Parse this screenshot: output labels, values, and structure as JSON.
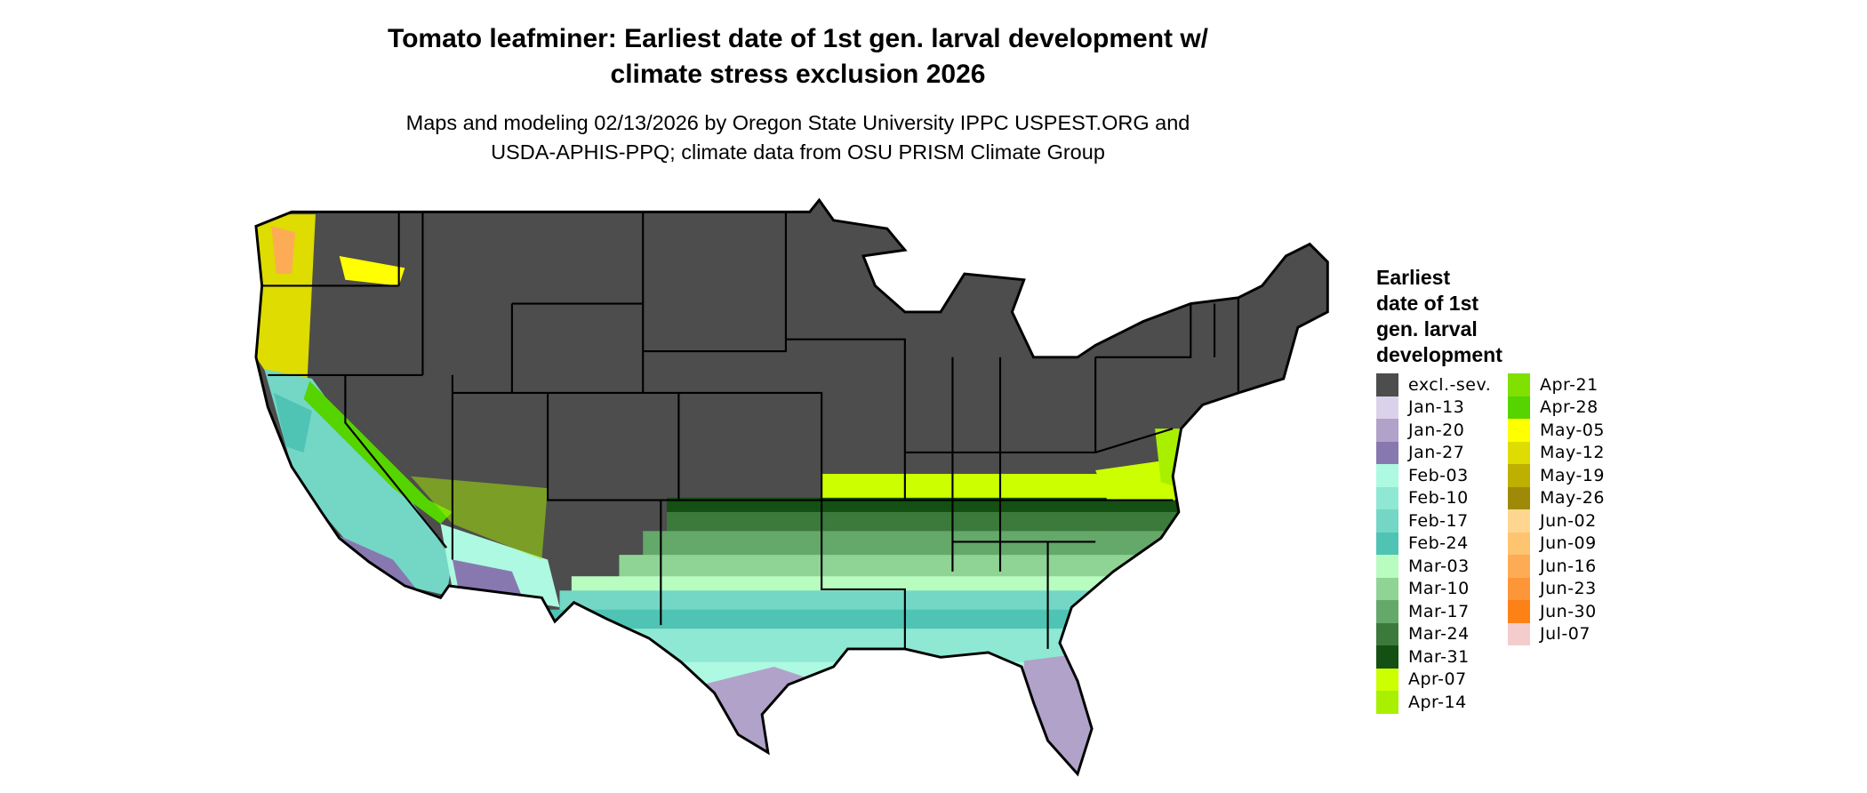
{
  "title": {
    "line1": "Tomato leafminer: Earliest date of 1st gen. larval development w/",
    "line2": "climate stress exclusion 2026"
  },
  "subtitle": {
    "line1": "Maps and modeling 02/13/2026 by Oregon State University IPPC USPEST.ORG and",
    "line2": "USDA-APHIS-PPQ; climate data from OSU PRISM Climate Group"
  },
  "legend": {
    "title_lines": [
      "Earliest",
      "date of 1st",
      "gen. larval",
      "development"
    ],
    "items": [
      {
        "label": "excl.-sev.",
        "color": "#4d4d4d"
      },
      {
        "label": "Jan-13",
        "color": "#dad2ea"
      },
      {
        "label": "Jan-20",
        "color": "#b0a2c9"
      },
      {
        "label": "Jan-27",
        "color": "#8878b0"
      },
      {
        "label": "Feb-03",
        "color": "#adf9e1"
      },
      {
        "label": "Feb-10",
        "color": "#8fe8d3"
      },
      {
        "label": "Feb-17",
        "color": "#74d7c5"
      },
      {
        "label": "Feb-24",
        "color": "#4fc4b5"
      },
      {
        "label": "Mar-03",
        "color": "#b8fcc0"
      },
      {
        "label": "Mar-10",
        "color": "#8fd494"
      },
      {
        "label": "Mar-17",
        "color": "#64a86a"
      },
      {
        "label": "Mar-24",
        "color": "#3b7a3b"
      },
      {
        "label": "Mar-31",
        "color": "#144f14"
      },
      {
        "label": "Apr-07",
        "color": "#ccff00"
      },
      {
        "label": "Apr-14",
        "color": "#a8f000"
      },
      {
        "label": "Apr-21",
        "color": "#80e000"
      },
      {
        "label": "Apr-28",
        "color": "#55d400"
      },
      {
        "label": "May-05",
        "color": "#ffff00"
      },
      {
        "label": "May-12",
        "color": "#dedc00"
      },
      {
        "label": "May-19",
        "color": "#bdb000"
      },
      {
        "label": "May-26",
        "color": "#9e8a08"
      },
      {
        "label": "Jun-02",
        "color": "#fed68f"
      },
      {
        "label": "Jun-09",
        "color": "#fec470"
      },
      {
        "label": "Jun-16",
        "color": "#fdac55"
      },
      {
        "label": "Jun-23",
        "color": "#fd9638"
      },
      {
        "label": "Jun-30",
        "color": "#fc8218"
      },
      {
        "label": "Jul-07",
        "color": "#f4cccc"
      }
    ]
  }
}
